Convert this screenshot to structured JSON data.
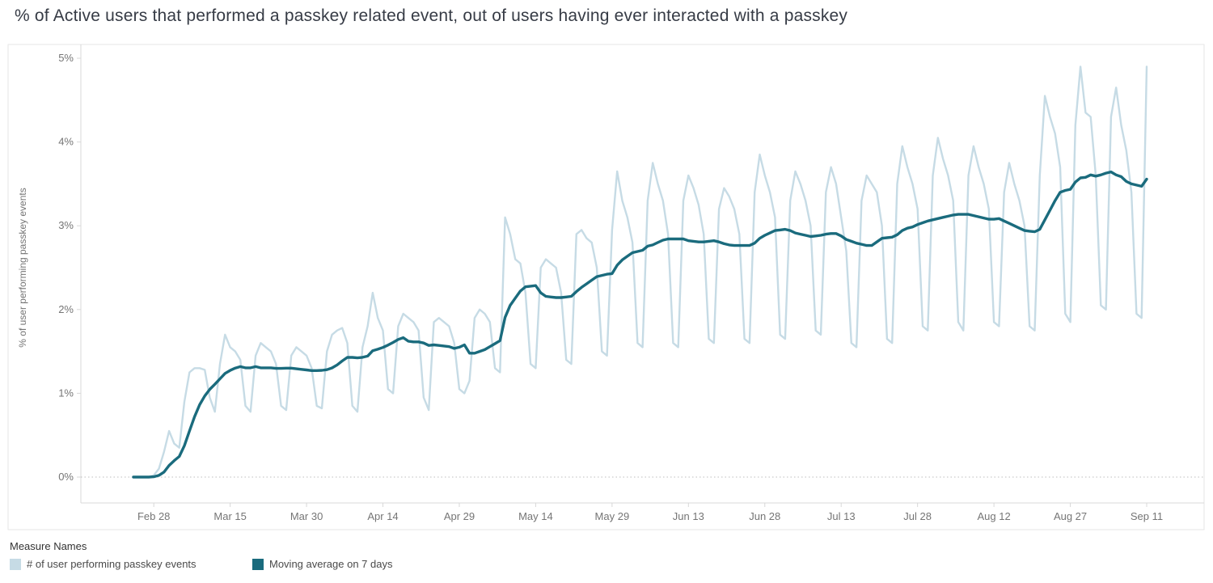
{
  "title": "% of Active users that performed a passkey related event, out of users having ever interacted with a passkey",
  "colors": {
    "daily_series": "#c6dbe5",
    "moving_average": "#1a6b7d",
    "title_text": "#363b45",
    "axis_text": "#757575",
    "grid_dotted": "#bdbdbd",
    "pane_border": "#e6e6e6",
    "axis_line": "#d8d8d8"
  },
  "legend": {
    "title": "Measure Names",
    "items": [
      {
        "label": "# of user performing passkey events",
        "color_key": "daily_series"
      },
      {
        "label": "Moving average on 7 days",
        "color_key": "moving_average"
      }
    ]
  },
  "chart_data": {
    "type": "line",
    "title": "% of Active users that performed a passkey related event, out of users having ever interacted with a passkey",
    "xlabel": "",
    "ylabel": "% of user performing passkey events",
    "ylim": [
      0,
      5
    ],
    "y_ticks": [
      "0%",
      "1%",
      "2%",
      "3%",
      "4%",
      "5%"
    ],
    "x_unit": "day",
    "x_description": "daily values from Feb 24 to Sep 11, one point per day",
    "x_tick_labels": [
      "Feb 28",
      "Mar 15",
      "Mar 30",
      "Apr 14",
      "Apr 29",
      "May 14",
      "May 29",
      "Jun 13",
      "Jun 28",
      "Jul 13",
      "Jul 28",
      "Aug 12",
      "Aug 27",
      "Sep 11"
    ],
    "x_tick_indices": [
      4,
      19,
      34,
      49,
      64,
      79,
      94,
      109,
      124,
      139,
      154,
      169,
      184,
      199
    ],
    "grid": "dotted horizontal line at 0% only",
    "legend_position": "bottom-left",
    "series": [
      {
        "name": "# of user performing passkey events",
        "color": "#c6dbe5",
        "values": [
          0,
          0,
          0,
          0,
          0.02,
          0.1,
          0.3,
          0.55,
          0.4,
          0.35,
          0.9,
          1.25,
          1.3,
          1.3,
          1.28,
          0.95,
          0.78,
          1.35,
          1.7,
          1.55,
          1.5,
          1.4,
          0.85,
          0.78,
          1.45,
          1.6,
          1.55,
          1.5,
          1.35,
          0.85,
          0.8,
          1.45,
          1.55,
          1.5,
          1.45,
          1.3,
          0.85,
          0.82,
          1.5,
          1.7,
          1.75,
          1.78,
          1.6,
          0.85,
          0.78,
          1.55,
          1.8,
          2.2,
          1.9,
          1.75,
          1.05,
          1.0,
          1.8,
          1.95,
          1.9,
          1.85,
          1.75,
          0.95,
          0.8,
          1.85,
          1.9,
          1.85,
          1.8,
          1.6,
          1.05,
          1.0,
          1.15,
          1.9,
          2.0,
          1.95,
          1.85,
          1.3,
          1.25,
          3.1,
          2.9,
          2.6,
          2.55,
          2.2,
          1.35,
          1.3,
          2.5,
          2.6,
          2.55,
          2.5,
          2.2,
          1.4,
          1.35,
          2.9,
          2.95,
          2.85,
          2.8,
          2.5,
          1.5,
          1.45,
          2.95,
          3.65,
          3.3,
          3.1,
          2.8,
          1.6,
          1.55,
          3.3,
          3.75,
          3.5,
          3.3,
          2.9,
          1.6,
          1.55,
          3.3,
          3.6,
          3.45,
          3.25,
          2.9,
          1.65,
          1.6,
          3.2,
          3.45,
          3.35,
          3.2,
          2.9,
          1.65,
          1.6,
          3.4,
          3.85,
          3.6,
          3.4,
          3.1,
          1.7,
          1.65,
          3.3,
          3.65,
          3.5,
          3.3,
          3.0,
          1.75,
          1.7,
          3.4,
          3.7,
          3.5,
          3.1,
          2.7,
          1.6,
          1.55,
          3.3,
          3.6,
          3.5,
          3.4,
          3.0,
          1.65,
          1.6,
          3.5,
          3.95,
          3.7,
          3.5,
          3.2,
          1.8,
          1.75,
          3.6,
          4.05,
          3.8,
          3.6,
          3.3,
          1.85,
          1.75,
          3.6,
          3.95,
          3.7,
          3.5,
          3.2,
          1.85,
          1.8,
          3.4,
          3.75,
          3.5,
          3.3,
          3.0,
          1.8,
          1.75,
          3.6,
          4.55,
          4.3,
          4.1,
          3.7,
          1.95,
          1.85,
          4.2,
          4.9,
          4.35,
          4.3,
          3.6,
          2.05,
          2.0,
          4.3,
          4.65,
          4.2,
          3.9,
          3.4,
          1.95,
          1.9,
          4.9
        ]
      },
      {
        "name": "Moving average on 7 days",
        "color": "#1a6b7d",
        "derived_from_series": 0,
        "derivation": "trailing moving average over a 7 day window of series 0"
      }
    ]
  }
}
